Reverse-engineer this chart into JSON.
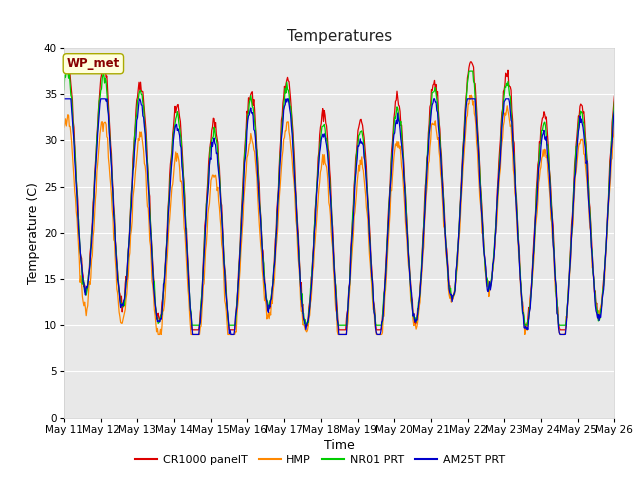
{
  "title": "Temperatures",
  "xlabel": "Time",
  "ylabel": "Temperature (C)",
  "ylim": [
    0,
    40
  ],
  "yticks": [
    0,
    5,
    10,
    15,
    20,
    25,
    30,
    35,
    40
  ],
  "bg_color": "#e8e8e8",
  "fig_color": "#ffffff",
  "annotation_text": "WP_met",
  "annotation_bg": "#ffffdd",
  "annotation_border": "#aaaa00",
  "annotation_text_color": "#880000",
  "series_colors": [
    "#dd0000",
    "#ff8800",
    "#00cc00",
    "#0000cc"
  ],
  "series_labels": [
    "CR1000 panelT",
    "HMP",
    "NR01 PRT",
    "AM25T PRT"
  ],
  "n_days": 15,
  "xtick_labels": [
    "May 11",
    "May 12",
    "May 13",
    "May 14",
    "May 15",
    "May 16",
    "May 17",
    "May 18",
    "May 19",
    "May 20",
    "May 21",
    "May 22",
    "May 23",
    "May 24",
    "May 25",
    "May 26"
  ]
}
